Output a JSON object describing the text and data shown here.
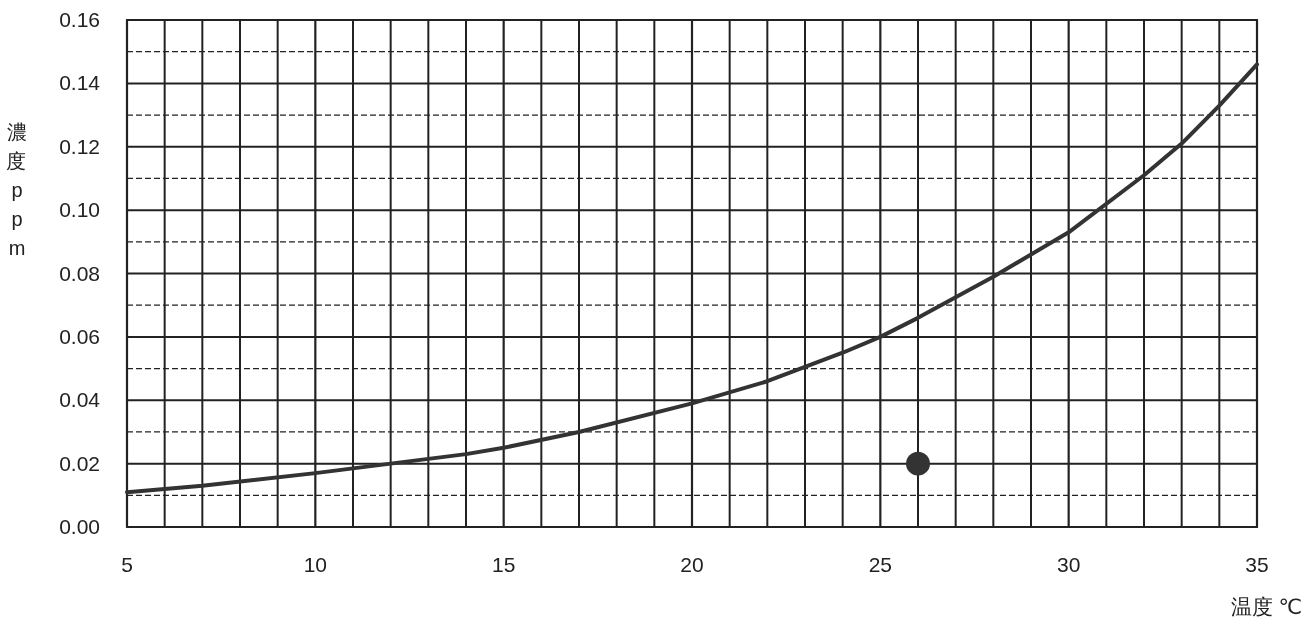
{
  "chart_data": {
    "type": "line",
    "xlabel": "温度 ℃",
    "ylabel": "濃度 ppm",
    "xlim": [
      5,
      35
    ],
    "ylim": [
      0,
      0.16
    ],
    "xticks": [
      5,
      {
        "value": 6,
        "label": null
      },
      {
        "value": 7,
        "label": null
      },
      {
        "value": 8,
        "label": null
      },
      {
        "value": 9,
        "label": null
      },
      10,
      {
        "value": 11,
        "label": null
      },
      {
        "value": 12,
        "label": null
      },
      {
        "value": 13,
        "label": null
      },
      {
        "value": 14,
        "label": null
      },
      15,
      {
        "value": 16,
        "label": null
      },
      {
        "value": 17,
        "label": null
      },
      {
        "value": 18,
        "label": null
      },
      {
        "value": 19,
        "label": null
      },
      20,
      {
        "value": 21,
        "label": null
      },
      {
        "value": 22,
        "label": null
      },
      {
        "value": 23,
        "label": null
      },
      {
        "value": 24,
        "label": null
      },
      25,
      {
        "value": 26,
        "label": null
      },
      {
        "value": 27,
        "label": null
      },
      {
        "value": 28,
        "label": null
      },
      {
        "value": 29,
        "label": null
      },
      30,
      {
        "value": 31,
        "label": null
      },
      {
        "value": 32,
        "label": null
      },
      {
        "value": 33,
        "label": null
      },
      {
        "value": 34,
        "label": null
      },
      35
    ],
    "yticks": [
      {
        "value": 0,
        "label": "0.00"
      },
      {
        "value": 0.01,
        "label": null
      },
      {
        "value": 0.02,
        "label": "0.02"
      },
      {
        "value": 0.03,
        "label": null
      },
      {
        "value": 0.04,
        "label": "0.04"
      },
      {
        "value": 0.05,
        "label": null
      },
      {
        "value": 0.06,
        "label": "0.06"
      },
      {
        "value": 0.07,
        "label": null
      },
      {
        "value": 0.08,
        "label": "0.08"
      },
      {
        "value": 0.09,
        "label": null
      },
      {
        "value": 0.1,
        "label": "0.10"
      },
      {
        "value": 0.11,
        "label": null
      },
      {
        "value": 0.12,
        "label": "0.12"
      },
      {
        "value": 0.13,
        "label": null
      },
      {
        "value": 0.14,
        "label": "0.14"
      },
      {
        "value": 0.15,
        "label": null
      },
      {
        "value": 0.16,
        "label": "0.16"
      }
    ],
    "grid": true,
    "series": [
      {
        "type": "line",
        "color": "#333333",
        "x": [
          5,
          7,
          10,
          12,
          14,
          15,
          17,
          20,
          22,
          24,
          25,
          26,
          28,
          30,
          32,
          33,
          34,
          35
        ],
        "values": [
          0.011,
          0.013,
          0.017,
          0.02,
          0.023,
          0.025,
          0.03,
          0.039,
          0.046,
          0.055,
          0.06,
          0.066,
          0.079,
          0.093,
          0.111,
          0.121,
          0.133,
          0.146
        ]
      },
      {
        "type": "scatter",
        "color": "#333333",
        "marker": "circle",
        "x": [
          26
        ],
        "values": [
          0.02
        ]
      }
    ]
  }
}
